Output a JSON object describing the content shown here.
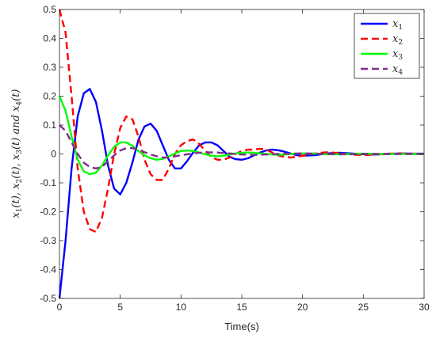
{
  "chart_data": {
    "type": "line",
    "xlabel": "Time(s)",
    "ylabel": "x1(t), x2(t), x3(t) and x4(t)",
    "ylabel_display": {
      "parts": [
        "x",
        "1",
        "(t), ",
        "x",
        "2",
        "(t), ",
        "x",
        "3",
        "(t) and ",
        "x",
        "4",
        "(t)"
      ]
    },
    "xlim": [
      0,
      30
    ],
    "ylim": [
      -0.5,
      0.5
    ],
    "xticks": [
      0,
      5,
      10,
      15,
      20,
      25,
      30
    ],
    "xtick_labels": [
      "0",
      "5",
      "10",
      "15",
      "20",
      "25",
      "30"
    ],
    "yticks": [
      -0.5,
      -0.4,
      -0.3,
      -0.2,
      -0.1,
      0,
      0.1,
      0.2,
      0.3,
      0.4,
      0.5
    ],
    "ytick_labels": [
      "-0.5",
      "-0.4",
      "-0.3",
      "-0.2",
      "-0.1",
      "0",
      "0.1",
      "0.2",
      "0.3",
      "0.4",
      "0.5"
    ],
    "grid": false,
    "legend_position": "top-right",
    "series": [
      {
        "name": "x1",
        "label_base": "x",
        "label_sub": "1",
        "color": "#0000ff",
        "dash": "solid",
        "x": [
          0,
          0.5,
          1,
          1.5,
          2,
          2.5,
          3,
          3.5,
          4,
          4.5,
          5,
          5.5,
          6,
          6.5,
          7,
          7.5,
          8,
          8.5,
          9,
          9.5,
          10,
          10.5,
          11,
          11.5,
          12,
          12.5,
          13,
          13.5,
          14,
          14.5,
          15,
          15.5,
          16,
          16.5,
          17,
          17.5,
          18,
          18.5,
          19,
          19.5,
          20,
          21,
          22,
          23,
          24,
          25,
          26,
          27,
          28,
          29,
          30
        ],
        "y": [
          -0.5,
          -0.3,
          -0.05,
          0.13,
          0.21,
          0.225,
          0.18,
          0.08,
          -0.04,
          -0.12,
          -0.14,
          -0.1,
          -0.03,
          0.05,
          0.095,
          0.105,
          0.08,
          0.03,
          -0.02,
          -0.05,
          -0.05,
          -0.025,
          0.005,
          0.03,
          0.04,
          0.04,
          0.03,
          0.01,
          -0.01,
          -0.018,
          -0.02,
          -0.015,
          -0.005,
          0.005,
          0.012,
          0.015,
          0.013,
          0.008,
          0.002,
          -0.004,
          -0.006,
          -0.004,
          0.002,
          0.004,
          0.002,
          -0.001,
          -0.002,
          0.0,
          0.002,
          0.001,
          0.001
        ]
      },
      {
        "name": "x2",
        "label_base": "x",
        "label_sub": "2",
        "color": "#ff0000",
        "dash": "dashed",
        "x": [
          0,
          0.5,
          1,
          1.5,
          2,
          2.5,
          3,
          3.5,
          4,
          4.5,
          5,
          5.5,
          6,
          6.5,
          7,
          7.5,
          8,
          8.5,
          9,
          9.5,
          10,
          10.5,
          11,
          11.5,
          12,
          12.5,
          13,
          13.5,
          14,
          14.5,
          15,
          15.5,
          16,
          16.5,
          17,
          17.5,
          18,
          18.5,
          19,
          19.5,
          20,
          21,
          22,
          23,
          24,
          25,
          26,
          27,
          28,
          29,
          30
        ],
        "y": [
          0.5,
          0.42,
          0.2,
          -0.05,
          -0.2,
          -0.26,
          -0.27,
          -0.22,
          -0.12,
          0.0,
          0.09,
          0.13,
          0.12,
          0.06,
          -0.02,
          -0.07,
          -0.09,
          -0.09,
          -0.05,
          0.0,
          0.03,
          0.045,
          0.05,
          0.035,
          0.01,
          -0.01,
          -0.02,
          -0.02,
          -0.012,
          0.0,
          0.01,
          0.015,
          0.015,
          0.018,
          0.015,
          0.005,
          -0.005,
          -0.01,
          -0.012,
          -0.01,
          -0.006,
          0.002,
          0.006,
          0.003,
          -0.002,
          -0.004,
          -0.002,
          0.001,
          0.002,
          0.001,
          0.0
        ]
      },
      {
        "name": "x3",
        "label_base": "x",
        "label_sub": "3",
        "color": "#00ff00",
        "dash": "solid",
        "x": [
          0,
          0.5,
          1,
          1.5,
          2,
          2.5,
          3,
          3.5,
          4,
          4.5,
          5,
          5.5,
          6,
          6.5,
          7,
          7.5,
          8,
          8.5,
          9,
          9.5,
          10,
          10.5,
          11,
          11.5,
          12,
          12.5,
          13,
          13.5,
          14,
          14.5,
          15,
          15.5,
          16,
          16.5,
          17,
          17.5,
          18,
          18.5,
          19,
          19.5,
          20,
          21,
          22,
          23,
          24,
          25,
          26,
          27,
          28,
          29,
          30
        ],
        "y": [
          0.2,
          0.15,
          0.06,
          -0.02,
          -0.06,
          -0.07,
          -0.065,
          -0.04,
          -0.005,
          0.025,
          0.04,
          0.04,
          0.028,
          0.01,
          -0.005,
          -0.015,
          -0.02,
          -0.017,
          -0.008,
          0.002,
          0.01,
          0.012,
          0.01,
          0.005,
          -0.001,
          -0.006,
          -0.008,
          -0.006,
          -0.002,
          0.002,
          0.004,
          0.005,
          0.004,
          0.002,
          0.0,
          -0.002,
          -0.003,
          -0.002,
          0.0,
          0.001,
          0.002,
          0.001,
          -0.001,
          -0.001,
          0.0,
          0.001,
          0.0,
          0.0,
          0.0,
          0.0,
          0.0
        ]
      },
      {
        "name": "x4",
        "label_base": "x",
        "label_sub": "4",
        "color": "#7e2f8e",
        "dash": "dashed",
        "x": [
          0,
          0.5,
          1,
          1.5,
          2,
          2.5,
          3,
          3.5,
          4,
          4.5,
          5,
          5.5,
          6,
          6.5,
          7,
          7.5,
          8,
          8.5,
          9,
          9.5,
          10,
          11,
          12,
          13,
          14,
          15,
          16,
          17,
          18,
          19,
          20,
          21,
          22,
          23,
          24,
          25,
          26,
          27,
          28,
          29,
          30
        ],
        "y": [
          0.1,
          0.08,
          0.04,
          0.0,
          -0.03,
          -0.045,
          -0.05,
          -0.045,
          -0.025,
          -0.005,
          0.012,
          0.02,
          0.02,
          0.015,
          0.006,
          -0.002,
          -0.008,
          -0.012,
          -0.012,
          -0.008,
          -0.004,
          0.002,
          0.006,
          0.005,
          0.002,
          -0.002,
          -0.003,
          -0.002,
          0.0,
          0.001,
          0.002,
          0.001,
          0.0,
          -0.001,
          -0.001,
          0.0,
          0.0,
          0.0,
          0.0,
          0.0,
          0.0
        ]
      }
    ]
  }
}
